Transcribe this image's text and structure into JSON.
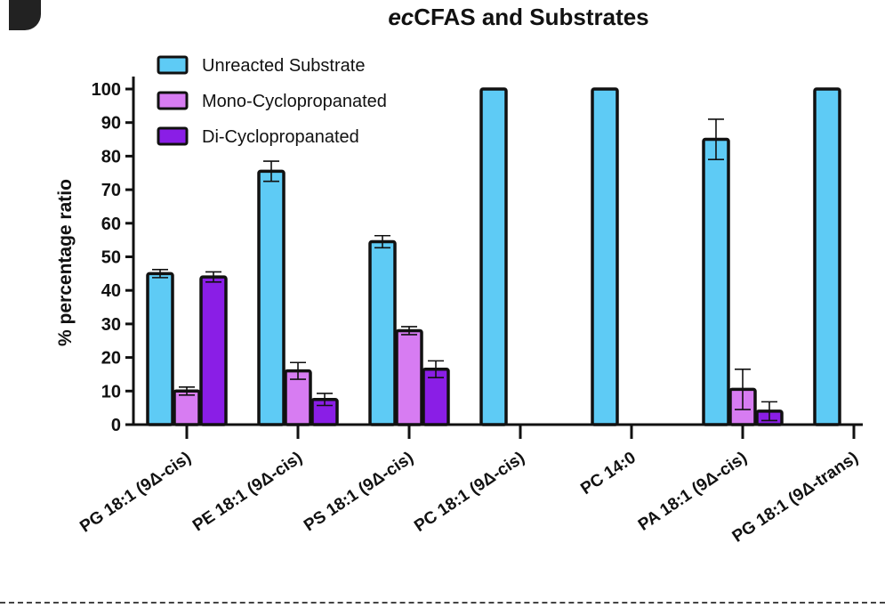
{
  "chart_data": {
    "type": "bar",
    "title_prefix": "ec",
    "title_rest": "CFAS and Substrates",
    "ylabel": "% percentage ratio",
    "xlabel": "",
    "ylim": [
      0,
      100
    ],
    "yticks": [
      0,
      10,
      20,
      30,
      40,
      50,
      60,
      70,
      80,
      90,
      100
    ],
    "categories": [
      "PG 18:1 (9Δ-cis)",
      "PE 18:1 (9Δ-cis)",
      "PS 18:1 (9Δ-cis)",
      "PC 18:1 (9Δ-cis)",
      "PC 14:0",
      "PA 18:1 (9Δ-cis)",
      "PG 18:1 (9Δ-trans)"
    ],
    "series": [
      {
        "name": "Unreacted Substrate",
        "color": "#5ecbf5",
        "values": [
          45,
          75.5,
          54.5,
          100,
          100,
          85,
          100
        ],
        "errors": [
          1.2,
          3,
          1.8,
          0,
          0,
          6,
          0
        ]
      },
      {
        "name": "Mono-Cyclopropanated",
        "color": "#d77cf2",
        "values": [
          10,
          16,
          28,
          0,
          0,
          10.5,
          0
        ],
        "errors": [
          1.2,
          2.5,
          1.2,
          0,
          0,
          6,
          0
        ]
      },
      {
        "name": "Di-Cyclopropanated",
        "color": "#8a1ee6",
        "values": [
          44,
          7.5,
          16.5,
          0,
          0,
          4,
          0
        ],
        "errors": [
          1.5,
          1.8,
          2.5,
          0,
          0,
          2.8,
          0
        ]
      }
    ],
    "legend_position": "top-left",
    "grid": false
  }
}
